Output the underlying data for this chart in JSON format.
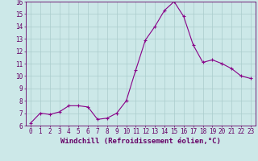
{
  "x": [
    0,
    1,
    2,
    3,
    4,
    5,
    6,
    7,
    8,
    9,
    10,
    11,
    12,
    13,
    14,
    15,
    16,
    17,
    18,
    19,
    20,
    21,
    22,
    23
  ],
  "y": [
    6.2,
    7.0,
    6.9,
    7.1,
    7.6,
    7.6,
    7.5,
    6.5,
    6.6,
    7.0,
    8.0,
    10.5,
    12.9,
    14.0,
    15.3,
    16.0,
    14.8,
    12.5,
    11.1,
    11.3,
    11.0,
    10.6,
    10.0,
    9.8
  ],
  "line_color": "#880088",
  "marker": "+",
  "marker_size": 3.5,
  "linewidth": 0.8,
  "xlabel": "Windchill (Refroidissement éolien,°C)",
  "xlabel_fontsize": 6.5,
  "bg_color": "#cce8e8",
  "grid_color": "#aacccc",
  "axis_color": "#660066",
  "tick_color": "#660066",
  "xlim": [
    -0.5,
    23.5
  ],
  "ylim": [
    6,
    16
  ],
  "yticks": [
    6,
    7,
    8,
    9,
    10,
    11,
    12,
    13,
    14,
    15,
    16
  ],
  "xticks": [
    0,
    1,
    2,
    3,
    4,
    5,
    6,
    7,
    8,
    9,
    10,
    11,
    12,
    13,
    14,
    15,
    16,
    17,
    18,
    19,
    20,
    21,
    22,
    23
  ],
  "tick_fontsize": 5.5
}
